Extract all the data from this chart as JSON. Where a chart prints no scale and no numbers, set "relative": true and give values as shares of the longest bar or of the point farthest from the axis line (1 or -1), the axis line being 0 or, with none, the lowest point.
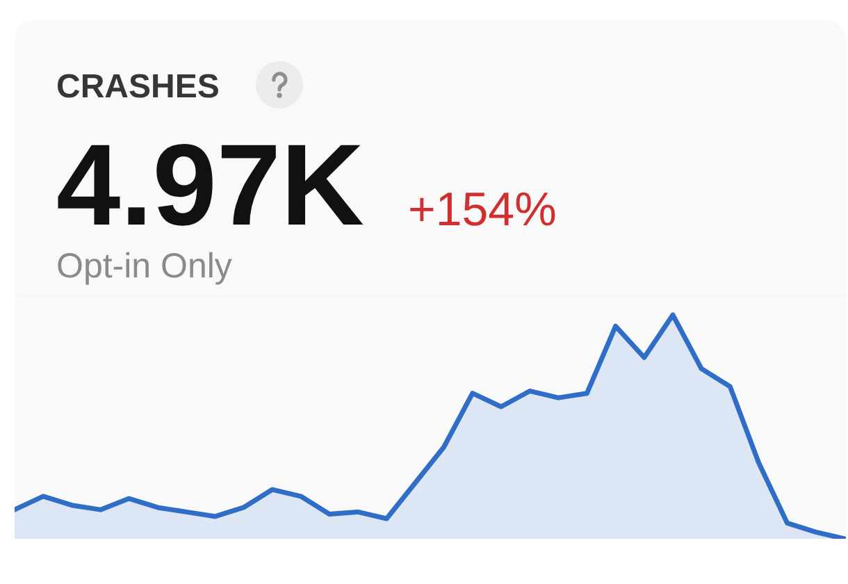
{
  "chart_data": {
    "type": "area",
    "title": "CRASHES",
    "annotations": [
      "4.97K",
      "+154%",
      "Opt-in Only"
    ],
    "relative": true,
    "color": "#2f6dc6",
    "categories": [
      null,
      null,
      null,
      null,
      null,
      null,
      null,
      null,
      null,
      null,
      null,
      null,
      null,
      null,
      null,
      null,
      null,
      null,
      null,
      null,
      null,
      null,
      null,
      null,
      null,
      null,
      null,
      null,
      null,
      null
    ],
    "values": [
      0.13,
      0.19,
      0.15,
      0.13,
      0.18,
      0.14,
      0.12,
      0.1,
      0.14,
      0.22,
      0.19,
      0.11,
      0.12,
      0.09,
      0.25,
      0.41,
      0.65,
      0.59,
      0.66,
      0.63,
      0.65,
      0.95,
      0.81,
      1,
      0.76,
      0.68,
      0.34,
      0.07,
      0.03,
      0
    ]
  }
}
